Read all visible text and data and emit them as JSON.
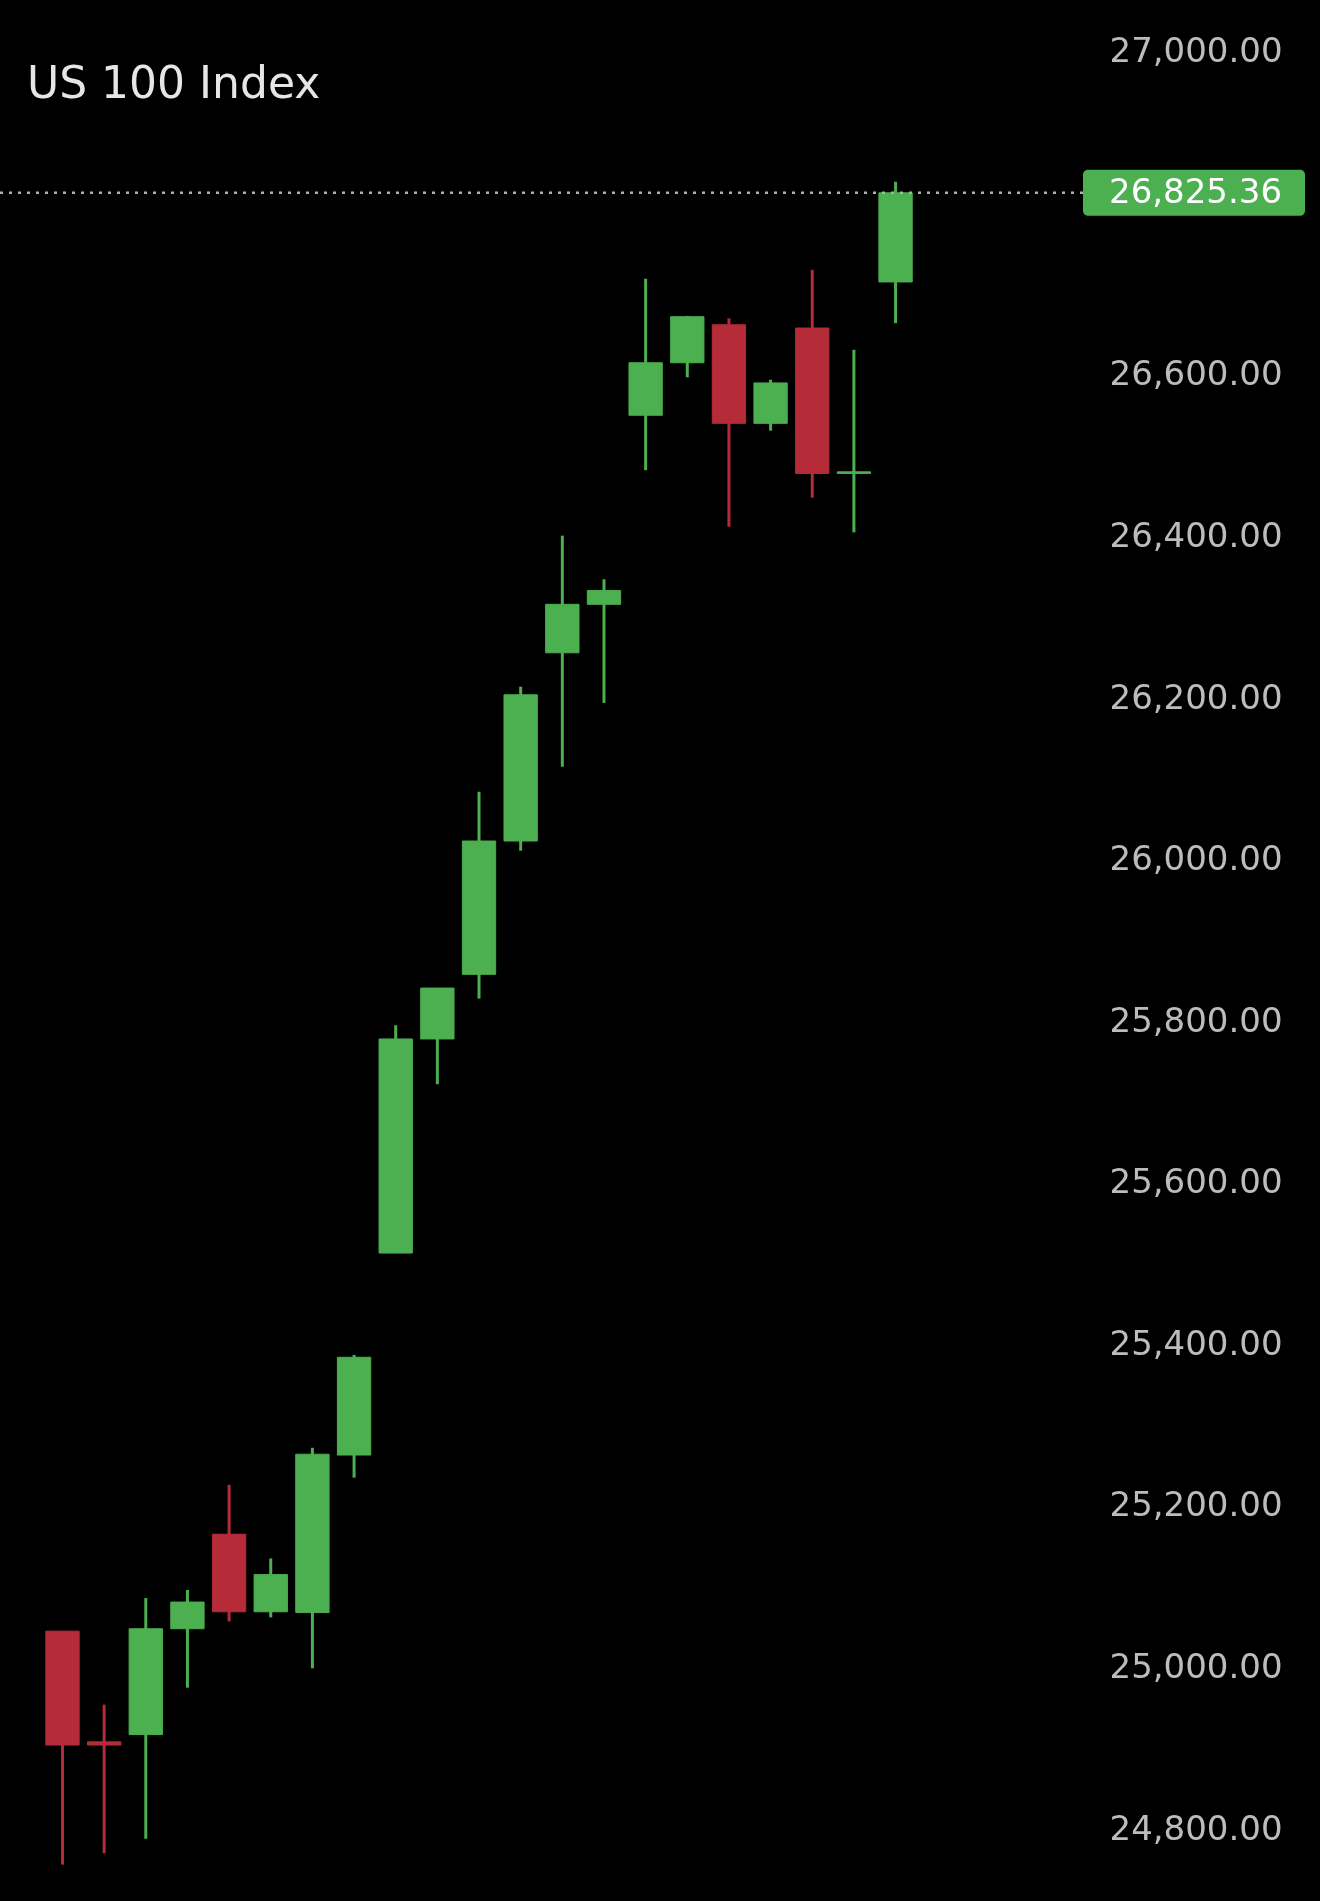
{
  "chart_data": {
    "type": "candlestick",
    "title": "US 100 Index",
    "categories": [
      null,
      null,
      null,
      null,
      null,
      null,
      null,
      null,
      null,
      null,
      null,
      null,
      null,
      null,
      null,
      null,
      null,
      null,
      null,
      null,
      null,
      null,
      null,
      null,
      null,
      null
    ],
    "ohlc": [
      null,
      [
        25045,
        25045,
        24756,
        24904
      ],
      [
        24908,
        24954,
        24770,
        24904
      ],
      [
        24917,
        25086,
        24788,
        25048
      ],
      [
        25048,
        25096,
        24975,
        25081
      ],
      [
        25165,
        25226,
        25057,
        25069
      ],
      [
        25069,
        25135,
        25062,
        25115
      ],
      [
        25068,
        25272,
        24999,
        25264
      ],
      [
        25263,
        25387,
        25235,
        25384
      ],
      [
        25513,
        25795,
        25513,
        25778
      ],
      [
        25778,
        25841,
        25722,
        25841
      ],
      [
        25858,
        26084,
        25828,
        26023
      ],
      [
        26023,
        26214,
        26011,
        26204
      ],
      [
        26256,
        26401,
        26115,
        26316
      ],
      [
        26316,
        26347,
        26194,
        26333
      ],
      [
        26550,
        26719,
        26482,
        26615
      ],
      [
        26615,
        26673,
        26597,
        26672
      ],
      [
        26662,
        26670,
        26412,
        26540
      ],
      [
        26540,
        26594,
        26531,
        26590
      ],
      [
        26658,
        26730,
        26448,
        26478
      ],
      [
        26478,
        26631,
        26405,
        26480
      ],
      [
        26715,
        26839,
        26664,
        26825.36
      ],
      null,
      null,
      null,
      null
    ],
    "colors": [
      null,
      "#b52b38",
      "#b52b38",
      "#4caf50",
      "#4caf50",
      "#b52b38",
      "#4caf50",
      "#4caf50",
      "#4caf50",
      "#4caf50",
      "#4caf50",
      "#4caf50",
      "#4caf50",
      "#4caf50",
      "#4caf50",
      "#4caf50",
      "#4caf50",
      "#b52b38",
      "#4caf50",
      "#b52b38",
      "#4caf50",
      "#4caf50",
      null,
      null,
      null,
      null
    ],
    "ylim": [
      24711,
      27064
    ],
    "yticks": [
      {
        "value": 24800,
        "label": "24,800.00"
      },
      {
        "value": 25000,
        "label": "25,000.00"
      },
      {
        "value": 25200,
        "label": "25,200.00"
      },
      {
        "value": 25400,
        "label": "25,400.00"
      },
      {
        "value": 25600,
        "label": "25,600.00"
      },
      {
        "value": 25800,
        "label": "25,800.00"
      },
      {
        "value": 26000,
        "label": "26,000.00"
      },
      {
        "value": 26200,
        "label": "26,200.00"
      },
      {
        "value": 26400,
        "label": "26,400.00"
      },
      {
        "value": 26600,
        "label": "26,600.00"
      },
      {
        "value": 27000,
        "label": "27,000.00"
      }
    ],
    "tick_labels": "y",
    "ref_lines": [
      {
        "axis": "y",
        "value": 26825.36,
        "label": "26,825.36",
        "color": "#a3b8a3",
        "line_style": "dotted"
      }
    ]
  }
}
